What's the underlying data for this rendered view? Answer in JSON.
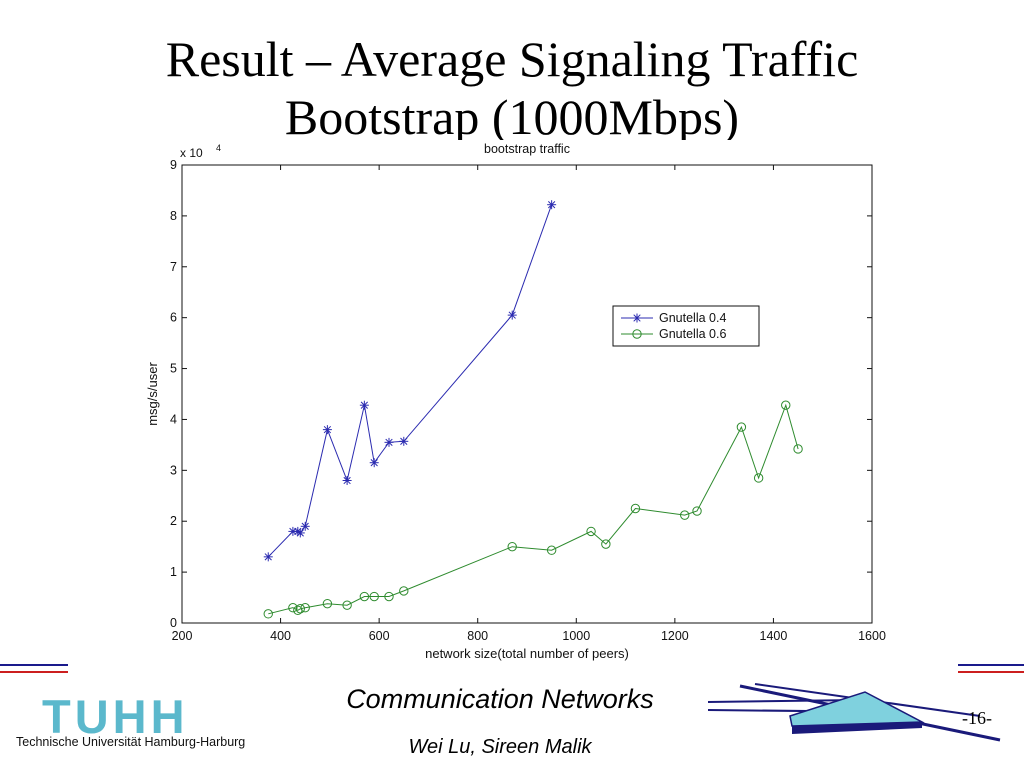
{
  "slide": {
    "title_line1": "Result – Average Signaling Traffic",
    "title_line2": "Bootstrap (1000Mbps)",
    "course": "Communication Networks",
    "authors": "Wei Lu, Sireen Malik",
    "page": "-16-",
    "logo_text": "TUHH",
    "logo_subtitle": "Technische Universität Hamburg-Harburg",
    "colors": {
      "logo": "#5bb8cc",
      "rule_top": "#1a1a8c",
      "rule_bottom": "#cc1f1f",
      "deco_fill": "#7fd1de",
      "deco_line": "#1a1a7a"
    }
  },
  "chart_data": {
    "type": "line",
    "title": "bootstrap traffic",
    "xlabel": "network size(total number of peers)",
    "ylabel": "msg/s/user",
    "y_exponent_label": "x 10",
    "y_exponent_power": "4",
    "xlim": [
      200,
      1600
    ],
    "ylim": [
      0,
      9
    ],
    "x_ticks": [
      "200",
      "400",
      "600",
      "800",
      "1000",
      "1200",
      "1400",
      "1600"
    ],
    "y_ticks": [
      "0",
      "1",
      "2",
      "3",
      "4",
      "5",
      "6",
      "7",
      "8",
      "9"
    ],
    "grid": false,
    "legend_position": "right",
    "series": [
      {
        "name": "Gnutella 0.4",
        "color": "#2b2bb0",
        "marker": "asterisk",
        "x": [
          375,
          425,
          435,
          440,
          450,
          495,
          535,
          570,
          590,
          620,
          650,
          870,
          950
        ],
        "y": [
          1.3,
          1.8,
          1.8,
          1.77,
          1.9,
          3.8,
          2.8,
          4.28,
          3.15,
          3.55,
          3.57,
          6.05,
          8.22
        ]
      },
      {
        "name": "Gnutella 0.6",
        "color": "#2e8b2e",
        "marker": "circle",
        "x": [
          375,
          425,
          435,
          440,
          450,
          495,
          535,
          570,
          590,
          620,
          650,
          870,
          950,
          1030,
          1060,
          1120,
          1220,
          1245,
          1335,
          1370,
          1425,
          1450
        ],
        "y": [
          0.18,
          0.3,
          0.25,
          0.28,
          0.3,
          0.38,
          0.35,
          0.52,
          0.52,
          0.52,
          0.63,
          1.5,
          1.43,
          1.8,
          1.55,
          2.25,
          2.12,
          2.2,
          3.85,
          2.85,
          4.28,
          3.42
        ]
      }
    ]
  }
}
